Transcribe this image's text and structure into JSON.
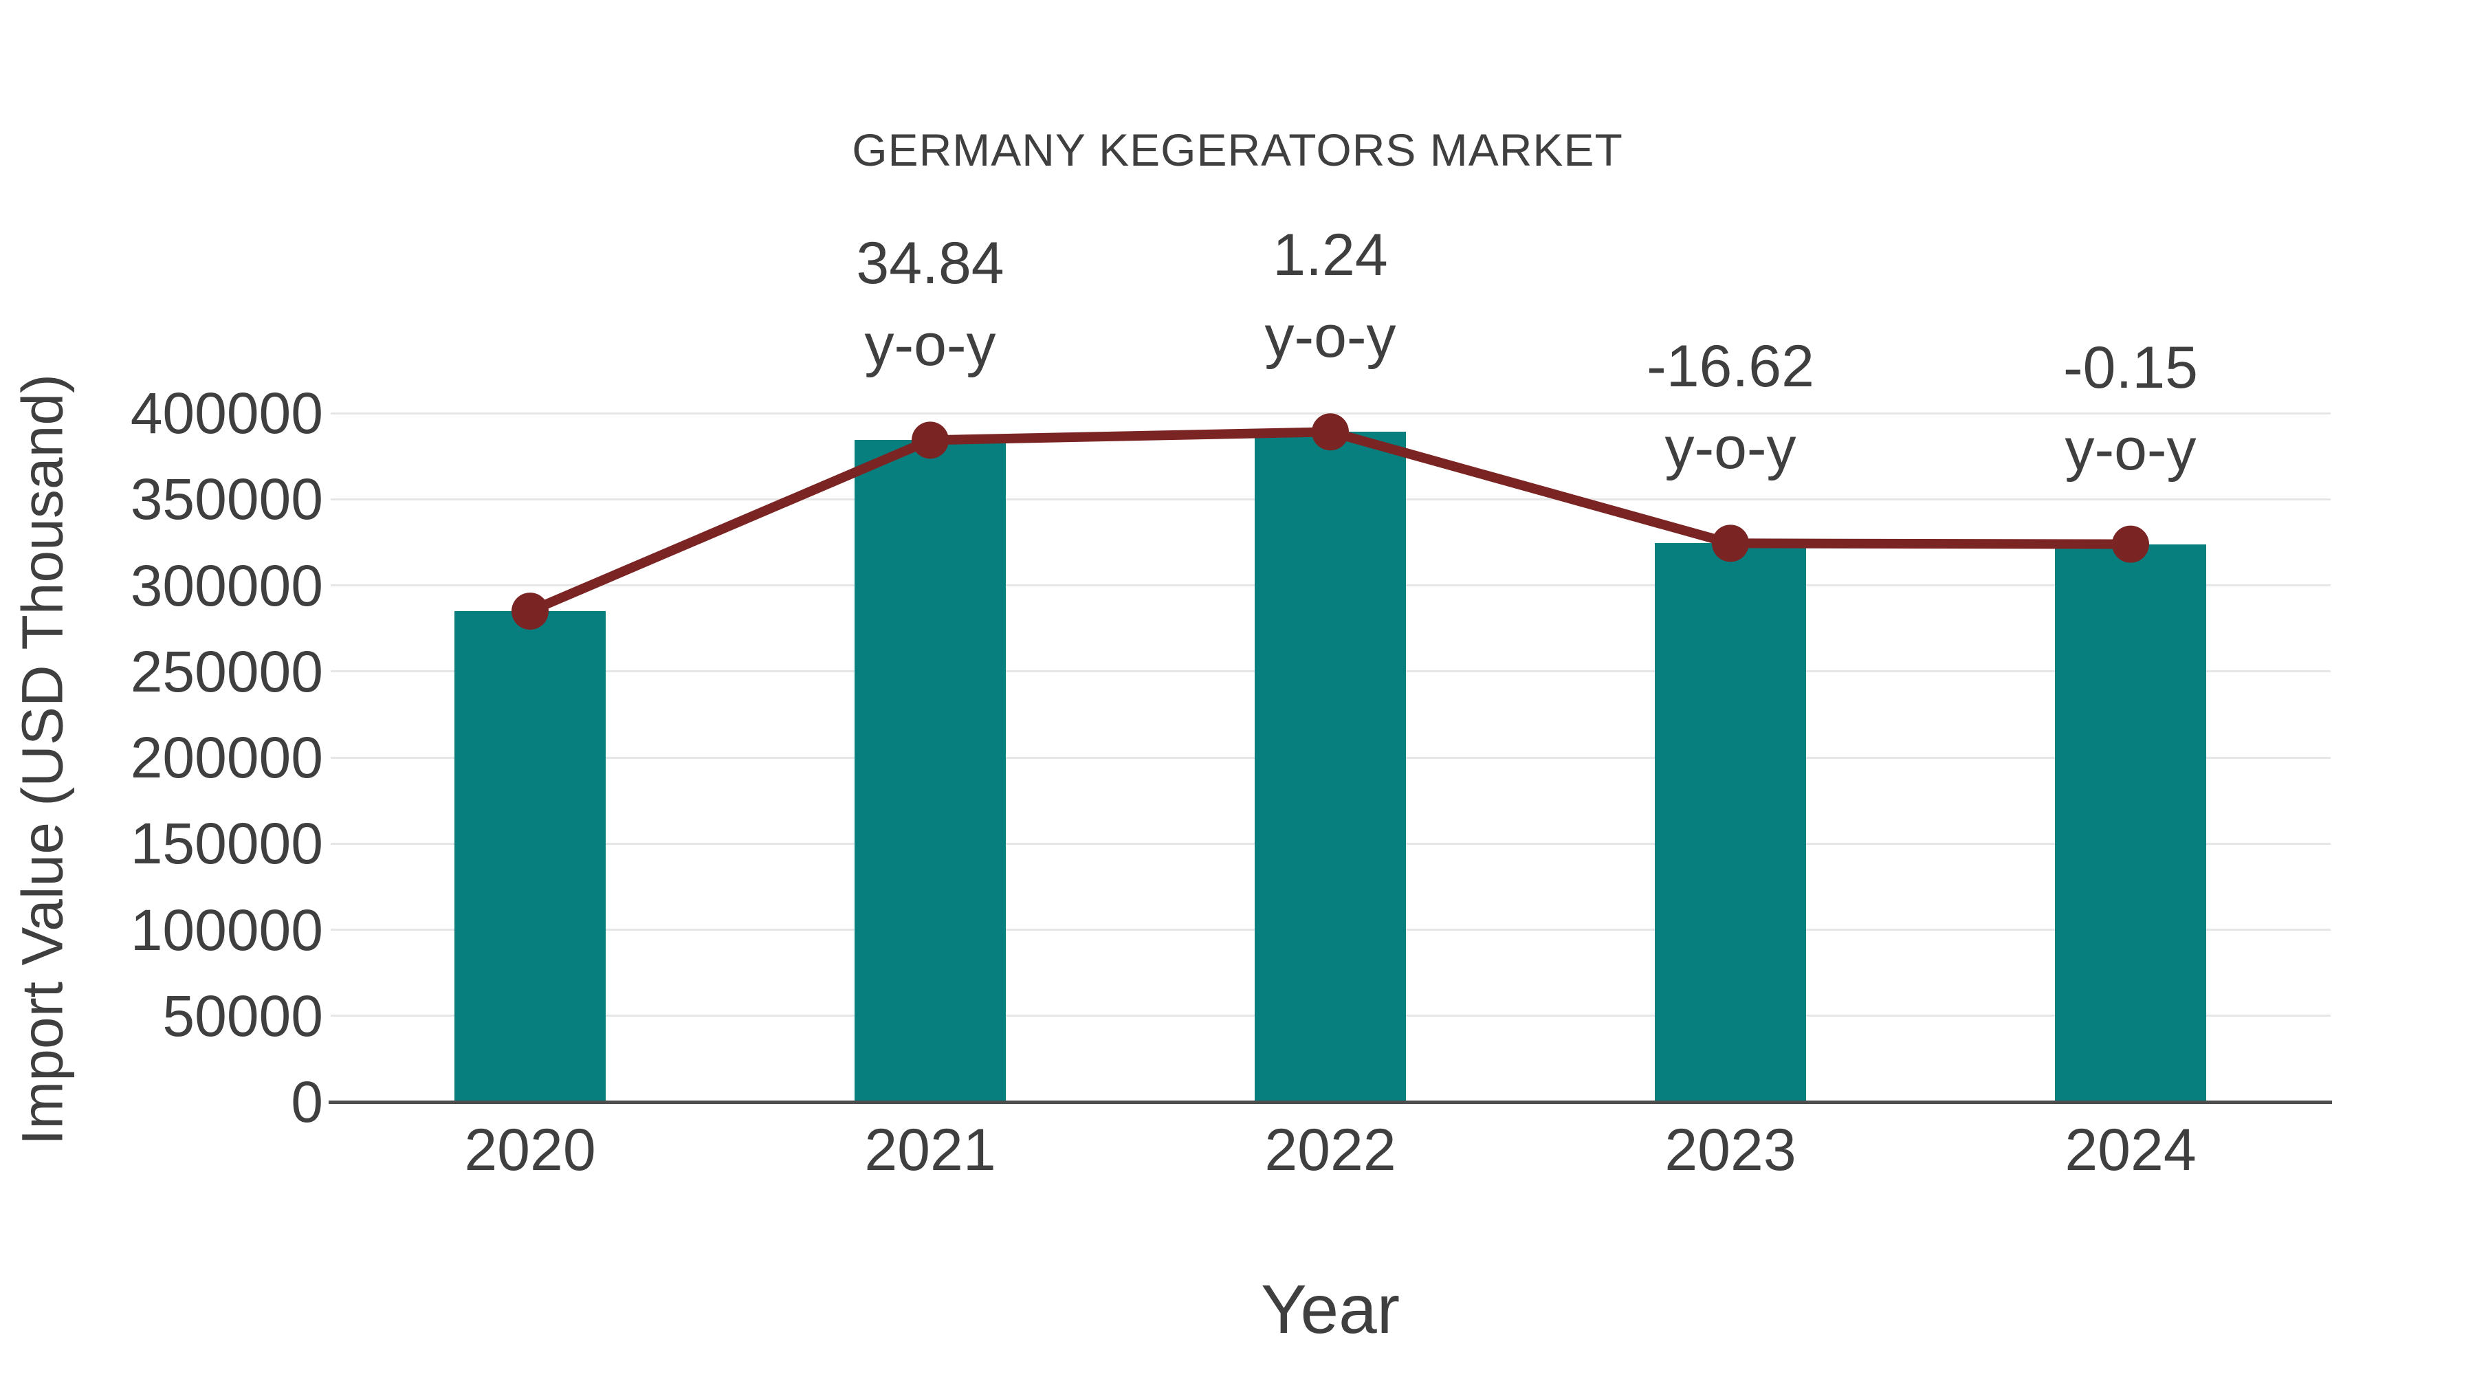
{
  "chart_data": {
    "type": "bar+line",
    "title": "GERMANY KEGERATORS MARKET",
    "xlabel": "Year",
    "ylabel": "Import Value (USD Thousand)",
    "categories": [
      "2020",
      "2021",
      "2022",
      "2023",
      "2024"
    ],
    "values": [
      285000,
      384300,
      389100,
      324400,
      323900
    ],
    "series": [
      {
        "name": "Import Value bars",
        "type": "bar"
      },
      {
        "name": "Import Value trend line with markers",
        "type": "line"
      }
    ],
    "annotations": [
      {
        "category": "2021",
        "lines": [
          "34.84",
          "y-o-y"
        ]
      },
      {
        "category": "2022",
        "lines": [
          "1.24",
          "y-o-y"
        ]
      },
      {
        "category": "2023",
        "lines": [
          "-16.62",
          "y-o-y"
        ]
      },
      {
        "category": "2024",
        "lines": [
          "-0.15",
          "y-o-y"
        ]
      }
    ],
    "ylim": [
      0,
      400000
    ],
    "ytick_step": 50000,
    "ytick_labels": [
      "0",
      "50000",
      "100000",
      "150000",
      "200000",
      "250000",
      "300000",
      "350000",
      "400000"
    ],
    "grid": true,
    "legend": "none",
    "colors": {
      "bar": "#077f7f",
      "line": "#7b2424",
      "marker": "#7b2424",
      "text": "#3f3f3f",
      "gridline": "#e6e6e6",
      "axis_line": "#4d4d4d",
      "background": "#ffffff"
    }
  }
}
